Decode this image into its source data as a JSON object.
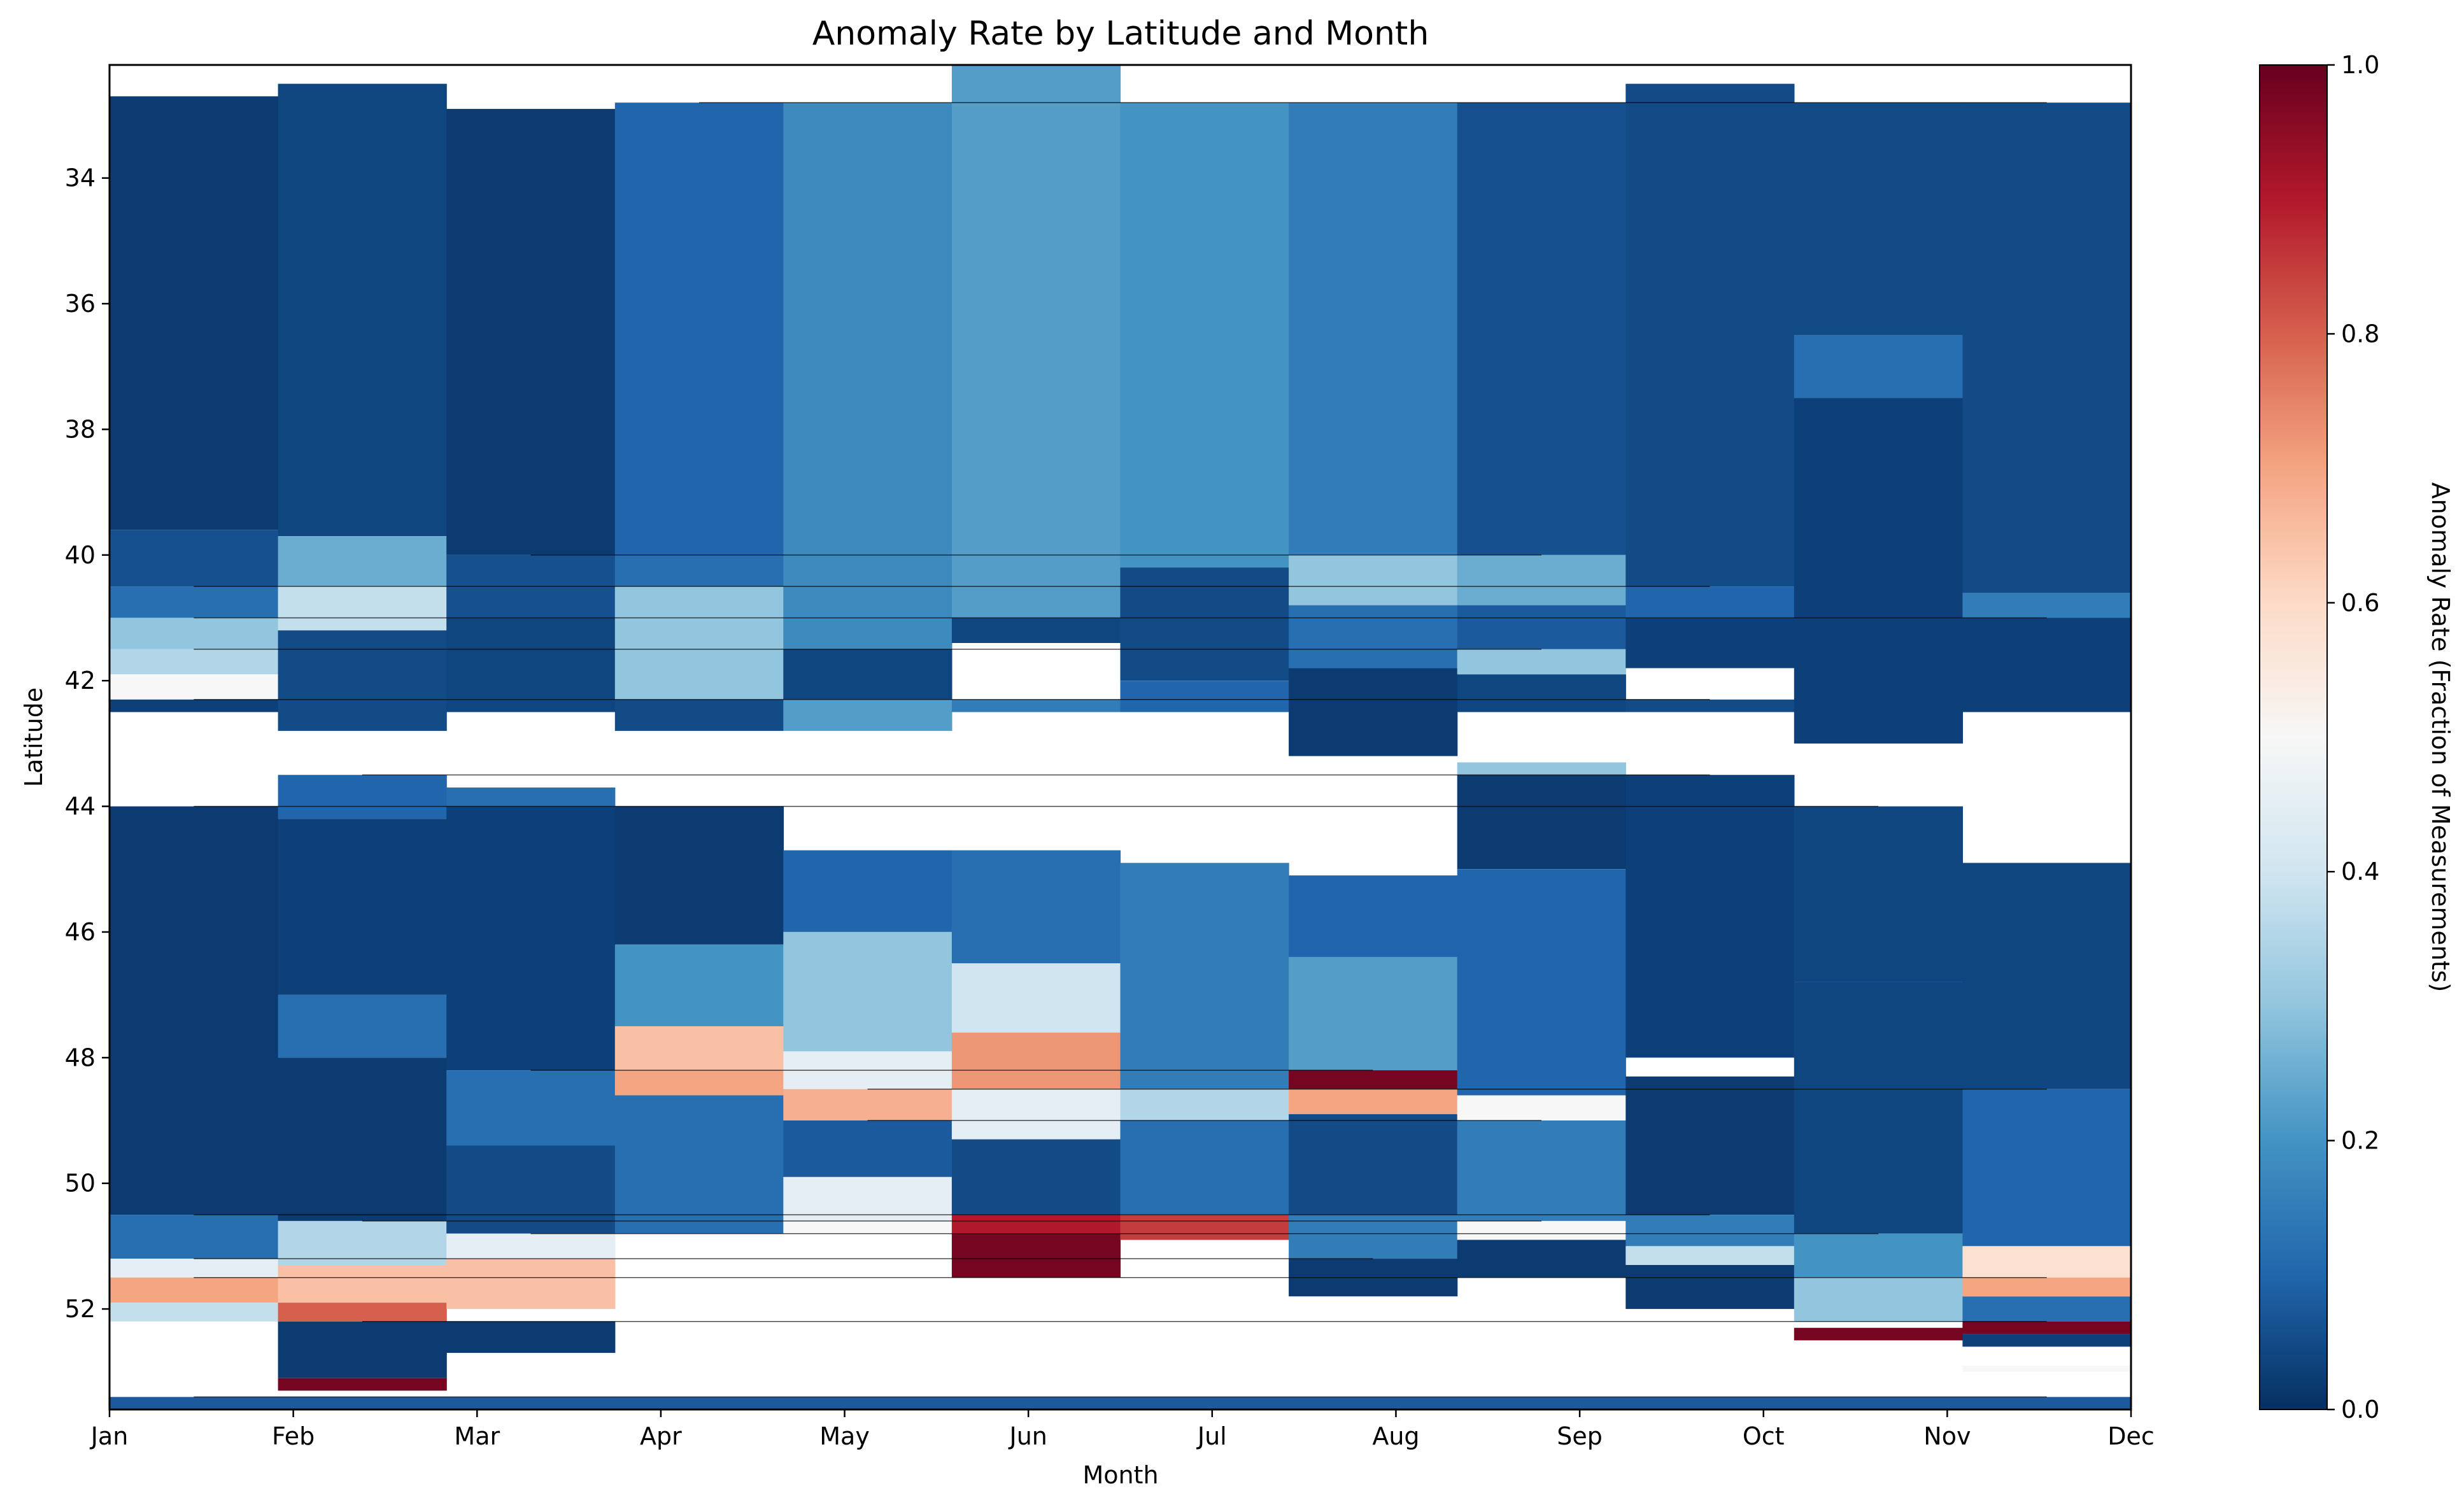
{
  "chart_data": {
    "type": "heatmap",
    "title": "Anomaly Rate by Latitude and Month",
    "xlabel": "Month",
    "ylabel": "Latitude",
    "categories": [
      "Jan",
      "Feb",
      "Mar",
      "Apr",
      "May",
      "Jun",
      "Jul",
      "Aug",
      "Sep",
      "Oct",
      "Nov",
      "Dec"
    ],
    "y_ticks": [
      34,
      36,
      38,
      40,
      42,
      44,
      46,
      48,
      50,
      52
    ],
    "ylim": [
      53.6,
      32.2
    ],
    "y_inverted": true,
    "colorbar": {
      "label": "Anomaly Rate (Fraction of Measurements)",
      "min": 0.0,
      "max": 1.0,
      "ticks": [
        "0.0",
        "0.2",
        "0.4",
        "0.6",
        "0.8",
        "1.0"
      ],
      "colormap": "RdBu_r",
      "colors": [
        "#053061",
        "#2166ac",
        "#4393c3",
        "#92c5de",
        "#d1e5f0",
        "#f7f7f7",
        "#fddbc7",
        "#f4a582",
        "#d6604d",
        "#b2182b",
        "#67001f"
      ]
    },
    "series": [
      {
        "month": "Jan",
        "segments": [
          {
            "lat": [
              32.7,
              39.6
            ],
            "value": 0.02
          },
          {
            "lat": [
              39.6,
              40.5
            ],
            "value": 0.06
          },
          {
            "lat": [
              40.5,
              41.0
            ],
            "value": 0.12
          },
          {
            "lat": [
              41.0,
              41.5
            ],
            "value": 0.3
          },
          {
            "lat": [
              41.5,
              41.9
            ],
            "value": 0.35
          },
          {
            "lat": [
              41.9,
              42.3
            ],
            "value": 0.5
          },
          {
            "lat": [
              42.3,
              42.5
            ],
            "value": 0.03
          },
          {
            "lat": [
              44.0,
              50.5
            ],
            "value": 0.02
          },
          {
            "lat": [
              50.5,
              51.2
            ],
            "value": 0.12
          },
          {
            "lat": [
              51.2,
              51.5
            ],
            "value": 0.45
          },
          {
            "lat": [
              51.5,
              51.9
            ],
            "value": 0.7
          },
          {
            "lat": [
              51.9,
              52.2
            ],
            "value": 0.38
          },
          {
            "lat": [
              53.4,
              53.6
            ],
            "value": 0.08
          }
        ]
      },
      {
        "month": "Feb",
        "segments": [
          {
            "lat": [
              32.5,
              39.7
            ],
            "value": 0.04
          },
          {
            "lat": [
              39.7,
              40.5
            ],
            "value": 0.25
          },
          {
            "lat": [
              40.5,
              41.2
            ],
            "value": 0.38
          },
          {
            "lat": [
              41.2,
              42.8
            ],
            "value": 0.05
          },
          {
            "lat": [
              43.5,
              44.2
            ],
            "value": 0.1
          },
          {
            "lat": [
              44.2,
              47.0
            ],
            "value": 0.03
          },
          {
            "lat": [
              47.0,
              48.0
            ],
            "value": 0.12
          },
          {
            "lat": [
              48.0,
              50.6
            ],
            "value": 0.02
          },
          {
            "lat": [
              50.6,
              51.3
            ],
            "value": 0.35
          },
          {
            "lat": [
              51.3,
              51.9
            ],
            "value": 0.65
          },
          {
            "lat": [
              51.9,
              52.2
            ],
            "value": 0.8
          },
          {
            "lat": [
              52.2,
              53.1
            ],
            "value": 0.02
          },
          {
            "lat": [
              53.1,
              53.3
            ],
            "value": 0.98
          },
          {
            "lat": [
              53.4,
              53.6
            ],
            "value": 0.08
          }
        ]
      },
      {
        "month": "Mar",
        "segments": [
          {
            "lat": [
              32.9,
              40.0
            ],
            "value": 0.02
          },
          {
            "lat": [
              40.0,
              41.0
            ],
            "value": 0.06
          },
          {
            "lat": [
              41.0,
              42.5
            ],
            "value": 0.04
          },
          {
            "lat": [
              43.7,
              44.0
            ],
            "value": 0.12
          },
          {
            "lat": [
              44.0,
              48.2
            ],
            "value": 0.03
          },
          {
            "lat": [
              48.2,
              49.4
            ],
            "value": 0.12
          },
          {
            "lat": [
              49.4,
              50.8
            ],
            "value": 0.05
          },
          {
            "lat": [
              50.8,
              51.2
            ],
            "value": 0.45
          },
          {
            "lat": [
              51.2,
              52.0
            ],
            "value": 0.65
          },
          {
            "lat": [
              52.2,
              52.7
            ],
            "value": 0.02
          },
          {
            "lat": [
              53.4,
              53.6
            ],
            "value": 0.08
          }
        ]
      },
      {
        "month": "Apr",
        "segments": [
          {
            "lat": [
              32.8,
              40.0
            ],
            "value": 0.1
          },
          {
            "lat": [
              40.0,
              40.5
            ],
            "value": 0.12
          },
          {
            "lat": [
              40.5,
              42.3
            ],
            "value": 0.3
          },
          {
            "lat": [
              42.3,
              42.8
            ],
            "value": 0.05
          },
          {
            "lat": [
              44.0,
              46.2
            ],
            "value": 0.02
          },
          {
            "lat": [
              46.2,
              47.5
            ],
            "value": 0.2
          },
          {
            "lat": [
              47.5,
              48.2
            ],
            "value": 0.65
          },
          {
            "lat": [
              48.2,
              48.6
            ],
            "value": 0.7
          },
          {
            "lat": [
              48.6,
              50.8
            ],
            "value": 0.12
          },
          {
            "lat": [
              53.4,
              53.6
            ],
            "value": 0.08
          }
        ]
      },
      {
        "month": "May",
        "segments": [
          {
            "lat": [
              32.8,
              41.5
            ],
            "value": 0.18
          },
          {
            "lat": [
              41.5,
              42.3
            ],
            "value": 0.04
          },
          {
            "lat": [
              42.3,
              42.8
            ],
            "value": 0.22
          },
          {
            "lat": [
              44.7,
              46.0
            ],
            "value": 0.1
          },
          {
            "lat": [
              46.0,
              47.9
            ],
            "value": 0.3
          },
          {
            "lat": [
              47.9,
              48.5
            ],
            "value": 0.45
          },
          {
            "lat": [
              48.5,
              49.0
            ],
            "value": 0.68
          },
          {
            "lat": [
              49.0,
              49.9
            ],
            "value": 0.08
          },
          {
            "lat": [
              49.9,
              50.6
            ],
            "value": 0.45
          },
          {
            "lat": [
              50.6,
              50.8
            ],
            "value": 0.5
          },
          {
            "lat": [
              53.4,
              53.6
            ],
            "value": 0.08
          }
        ]
      },
      {
        "month": "Jun",
        "segments": [
          {
            "lat": [
              32.2,
              41.0
            ],
            "value": 0.22
          },
          {
            "lat": [
              41.0,
              41.4
            ],
            "value": 0.04
          },
          {
            "lat": [
              42.3,
              42.5
            ],
            "value": 0.15
          },
          {
            "lat": [
              44.7,
              46.5
            ],
            "value": 0.12
          },
          {
            "lat": [
              46.5,
              47.6
            ],
            "value": 0.4
          },
          {
            "lat": [
              47.6,
              48.5
            ],
            "value": 0.72
          },
          {
            "lat": [
              48.5,
              49.3
            ],
            "value": 0.45
          },
          {
            "lat": [
              49.3,
              50.5
            ],
            "value": 0.05
          },
          {
            "lat": [
              50.5,
              50.8
            ],
            "value": 0.9
          },
          {
            "lat": [
              50.8,
              51.5
            ],
            "value": 0.98
          },
          {
            "lat": [
              53.4,
              53.6
            ],
            "value": 0.08
          }
        ]
      },
      {
        "month": "Jul",
        "segments": [
          {
            "lat": [
              32.8,
              40.2
            ],
            "value": 0.2
          },
          {
            "lat": [
              40.2,
              42.0
            ],
            "value": 0.05
          },
          {
            "lat": [
              42.0,
              42.5
            ],
            "value": 0.1
          },
          {
            "lat": [
              44.9,
              48.5
            ],
            "value": 0.15
          },
          {
            "lat": [
              48.5,
              49.0
            ],
            "value": 0.35
          },
          {
            "lat": [
              49.0,
              50.5
            ],
            "value": 0.12
          },
          {
            "lat": [
              50.5,
              50.9
            ],
            "value": 0.85
          },
          {
            "lat": [
              53.4,
              53.6
            ],
            "value": 0.08
          }
        ]
      },
      {
        "month": "Aug",
        "segments": [
          {
            "lat": [
              32.8,
              40.0
            ],
            "value": 0.15
          },
          {
            "lat": [
              40.0,
              40.8
            ],
            "value": 0.3
          },
          {
            "lat": [
              40.8,
              41.8
            ],
            "value": 0.12
          },
          {
            "lat": [
              41.8,
              43.2
            ],
            "value": 0.02
          },
          {
            "lat": [
              45.1,
              46.4
            ],
            "value": 0.1
          },
          {
            "lat": [
              46.4,
              48.2
            ],
            "value": 0.22
          },
          {
            "lat": [
              48.2,
              48.5
            ],
            "value": 0.98
          },
          {
            "lat": [
              48.5,
              48.9
            ],
            "value": 0.7
          },
          {
            "lat": [
              48.9,
              50.5
            ],
            "value": 0.05
          },
          {
            "lat": [
              50.5,
              51.2
            ],
            "value": 0.15
          },
          {
            "lat": [
              51.2,
              51.8
            ],
            "value": 0.02
          },
          {
            "lat": [
              53.4,
              53.6
            ],
            "value": 0.08
          }
        ]
      },
      {
        "month": "Sep",
        "segments": [
          {
            "lat": [
              32.8,
              40.0
            ],
            "value": 0.06
          },
          {
            "lat": [
              40.0,
              40.8
            ],
            "value": 0.25
          },
          {
            "lat": [
              40.8,
              41.5
            ],
            "value": 0.08
          },
          {
            "lat": [
              41.5,
              41.9
            ],
            "value": 0.3
          },
          {
            "lat": [
              41.9,
              42.5
            ],
            "value": 0.04
          },
          {
            "lat": [
              43.3,
              43.5
            ],
            "value": 0.3
          },
          {
            "lat": [
              43.5,
              45.0
            ],
            "value": 0.02
          },
          {
            "lat": [
              45.0,
              48.6
            ],
            "value": 0.1
          },
          {
            "lat": [
              48.6,
              49.0
            ],
            "value": 0.5
          },
          {
            "lat": [
              49.0,
              50.6
            ],
            "value": 0.15
          },
          {
            "lat": [
              50.6,
              50.9
            ],
            "value": 0.5
          },
          {
            "lat": [
              50.9,
              51.5
            ],
            "value": 0.02
          },
          {
            "lat": [
              53.4,
              53.6
            ],
            "value": 0.08
          }
        ]
      },
      {
        "month": "Oct",
        "segments": [
          {
            "lat": [
              32.5,
              40.5
            ],
            "value": 0.05
          },
          {
            "lat": [
              40.5,
              41.0
            ],
            "value": 0.1
          },
          {
            "lat": [
              41.0,
              41.8
            ],
            "value": 0.03
          },
          {
            "lat": [
              42.3,
              42.5
            ],
            "value": 0.05
          },
          {
            "lat": [
              43.5,
              48.0
            ],
            "value": 0.03
          },
          {
            "lat": [
              48.3,
              50.5
            ],
            "value": 0.02
          },
          {
            "lat": [
              50.5,
              51.0
            ],
            "value": 0.15
          },
          {
            "lat": [
              51.0,
              51.3
            ],
            "value": 0.38
          },
          {
            "lat": [
              51.3,
              52.0
            ],
            "value": 0.02
          },
          {
            "lat": [
              53.4,
              53.6
            ],
            "value": 0.08
          }
        ]
      },
      {
        "month": "Nov",
        "segments": [
          {
            "lat": [
              32.8,
              36.5
            ],
            "value": 0.05
          },
          {
            "lat": [
              36.5,
              37.5
            ],
            "value": 0.12
          },
          {
            "lat": [
              37.5,
              43.0
            ],
            "value": 0.03
          },
          {
            "lat": [
              44.0,
              46.8
            ],
            "value": 0.04
          },
          {
            "lat": [
              46.8,
              50.8
            ],
            "value": 0.04
          },
          {
            "lat": [
              50.8,
              51.5
            ],
            "value": 0.2
          },
          {
            "lat": [
              51.5,
              52.2
            ],
            "value": 0.3
          },
          {
            "lat": [
              52.3,
              52.5
            ],
            "value": 0.98
          },
          {
            "lat": [
              53.4,
              53.6
            ],
            "value": 0.08
          }
        ]
      },
      {
        "month": "Dec",
        "segments": [
          {
            "lat": [
              32.8,
              40.6
            ],
            "value": 0.05
          },
          {
            "lat": [
              40.6,
              41.0
            ],
            "value": 0.15
          },
          {
            "lat": [
              41.0,
              42.5
            ],
            "value": 0.03
          },
          {
            "lat": [
              44.9,
              48.5
            ],
            "value": 0.04
          },
          {
            "lat": [
              48.5,
              51.0
            ],
            "value": 0.1
          },
          {
            "lat": [
              51.0,
              51.5
            ],
            "value": 0.58
          },
          {
            "lat": [
              51.5,
              51.8
            ],
            "value": 0.7
          },
          {
            "lat": [
              51.8,
              52.2
            ],
            "value": 0.12
          },
          {
            "lat": [
              52.2,
              52.4
            ],
            "value": 0.98
          },
          {
            "lat": [
              52.4,
              52.6
            ],
            "value": 0.03
          },
          {
            "lat": [
              52.9,
              53.0
            ],
            "value": 0.5
          },
          {
            "lat": [
              53.4,
              53.6
            ],
            "value": 0.08
          }
        ]
      }
    ]
  }
}
